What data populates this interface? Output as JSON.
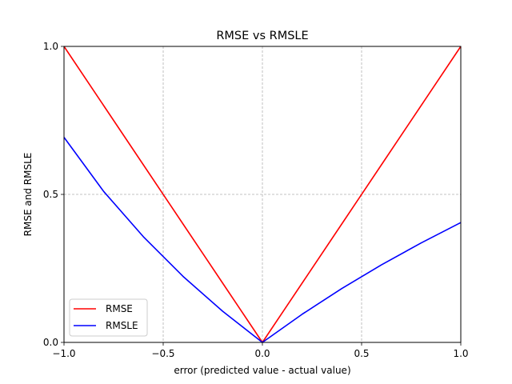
{
  "chart_data": {
    "type": "line",
    "title": "RMSE vs RMSLE",
    "xlabel": "error (predicted value - actual value)",
    "ylabel": "RMSE and RMSLE",
    "xlim": [
      -1.0,
      1.0
    ],
    "ylim": [
      0.0,
      1.0
    ],
    "x_ticks": [
      -1.0,
      -0.5,
      0.0,
      0.5,
      1.0
    ],
    "x_tick_labels": [
      "−1.0",
      "−0.5",
      "0.0",
      "0.5",
      "1.0"
    ],
    "y_ticks": [
      0.0,
      0.5,
      1.0
    ],
    "y_tick_labels": [
      "0.0",
      "0.5",
      "1.0"
    ],
    "grid": true,
    "legend_position": "lower-left",
    "x": [
      -1.0,
      -0.8,
      -0.6,
      -0.4,
      -0.2,
      0.0,
      0.2,
      0.4,
      0.6,
      0.8,
      1.0
    ],
    "series": [
      {
        "name": "RMSE",
        "color": "#ff0000",
        "values": [
          1.0,
          0.8,
          0.6,
          0.4,
          0.2,
          0.0,
          0.2,
          0.4,
          0.6,
          0.8,
          1.0
        ]
      },
      {
        "name": "RMSLE",
        "color": "#0000ff",
        "values": [
          0.693,
          0.51,
          0.357,
          0.223,
          0.105,
          0.0,
          0.095,
          0.182,
          0.262,
          0.336,
          0.405
        ]
      }
    ]
  }
}
